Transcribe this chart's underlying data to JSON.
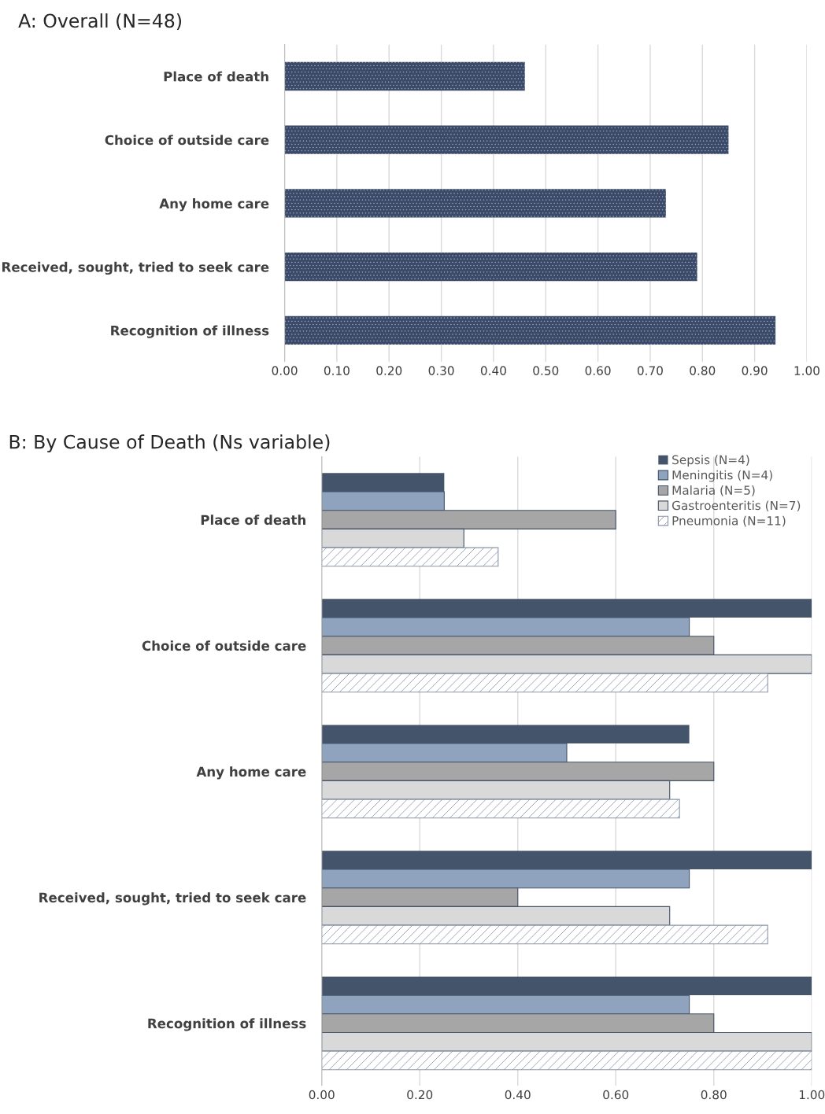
{
  "chart_data": [
    {
      "type": "bar",
      "title": "A: Overall (N=48)",
      "orientation": "horizontal",
      "categories": [
        "Place of death",
        "Choice of outside care",
        "Any home care",
        "Received, sought, tried to seek care",
        "Recognition of illness"
      ],
      "series": [
        {
          "color": "#3b4a68",
          "values": [
            0.46,
            0.85,
            0.73,
            0.79,
            0.94
          ]
        }
      ],
      "xlim": [
        0,
        1
      ],
      "xticks": [
        {
          "value": 0,
          "label": "0.00"
        },
        {
          "value": 0.1,
          "label": "0.10"
        },
        {
          "value": 0.2,
          "label": "0.20"
        },
        {
          "value": 0.3,
          "label": "0.30"
        },
        {
          "value": 0.4,
          "label": "0.40"
        },
        {
          "value": 0.5,
          "label": "0.50"
        },
        {
          "value": 0.6,
          "label": "0.60"
        },
        {
          "value": 0.7,
          "label": "0.70"
        },
        {
          "value": 0.8,
          "label": "0.80"
        },
        {
          "value": 0.9,
          "label": "0.90"
        },
        {
          "value": 1,
          "label": "1.00"
        }
      ],
      "grid": "x",
      "legend": false
    },
    {
      "type": "bar",
      "title": "B: By Cause of Death (Ns variable)",
      "orientation": "horizontal",
      "categories": [
        "Place of death",
        "Choice of outside care",
        "Any home care",
        "Received, sought, tried to seek care",
        "Recognition of illness"
      ],
      "series": [
        {
          "name": "Sepsis (N=4)",
          "color": "#44546a",
          "values": [
            0.25,
            1.0,
            0.75,
            1.0,
            1.0
          ]
        },
        {
          "name": "Meningitis (N=4)",
          "color": "#8fa3bf",
          "values": [
            0.25,
            0.75,
            0.5,
            0.75,
            0.75
          ]
        },
        {
          "name": "Malaria (N=5)",
          "color": "#a6a6a6",
          "values": [
            0.6,
            0.8,
            0.8,
            0.4,
            0.8
          ]
        },
        {
          "name": "Gastroenteritis (N=7)",
          "color": "#d9d9d9",
          "values": [
            0.29,
            1.0,
            0.71,
            0.71,
            1.0
          ]
        },
        {
          "name": "Pneumonia (N=11)",
          "color": "#8a94a6",
          "values": [
            0.36,
            0.91,
            0.73,
            0.91,
            1.0
          ]
        }
      ],
      "xlim": [
        0,
        1
      ],
      "xticks": [
        {
          "value": 0,
          "label": "0.00"
        },
        {
          "value": 0.2,
          "label": "0.20"
        },
        {
          "value": 0.4,
          "label": "0.40"
        },
        {
          "value": 0.6,
          "label": "0.60"
        },
        {
          "value": 0.8,
          "label": "0.80"
        },
        {
          "value": 1,
          "label": "1.00"
        }
      ],
      "grid": "x",
      "legend": "top right"
    }
  ]
}
